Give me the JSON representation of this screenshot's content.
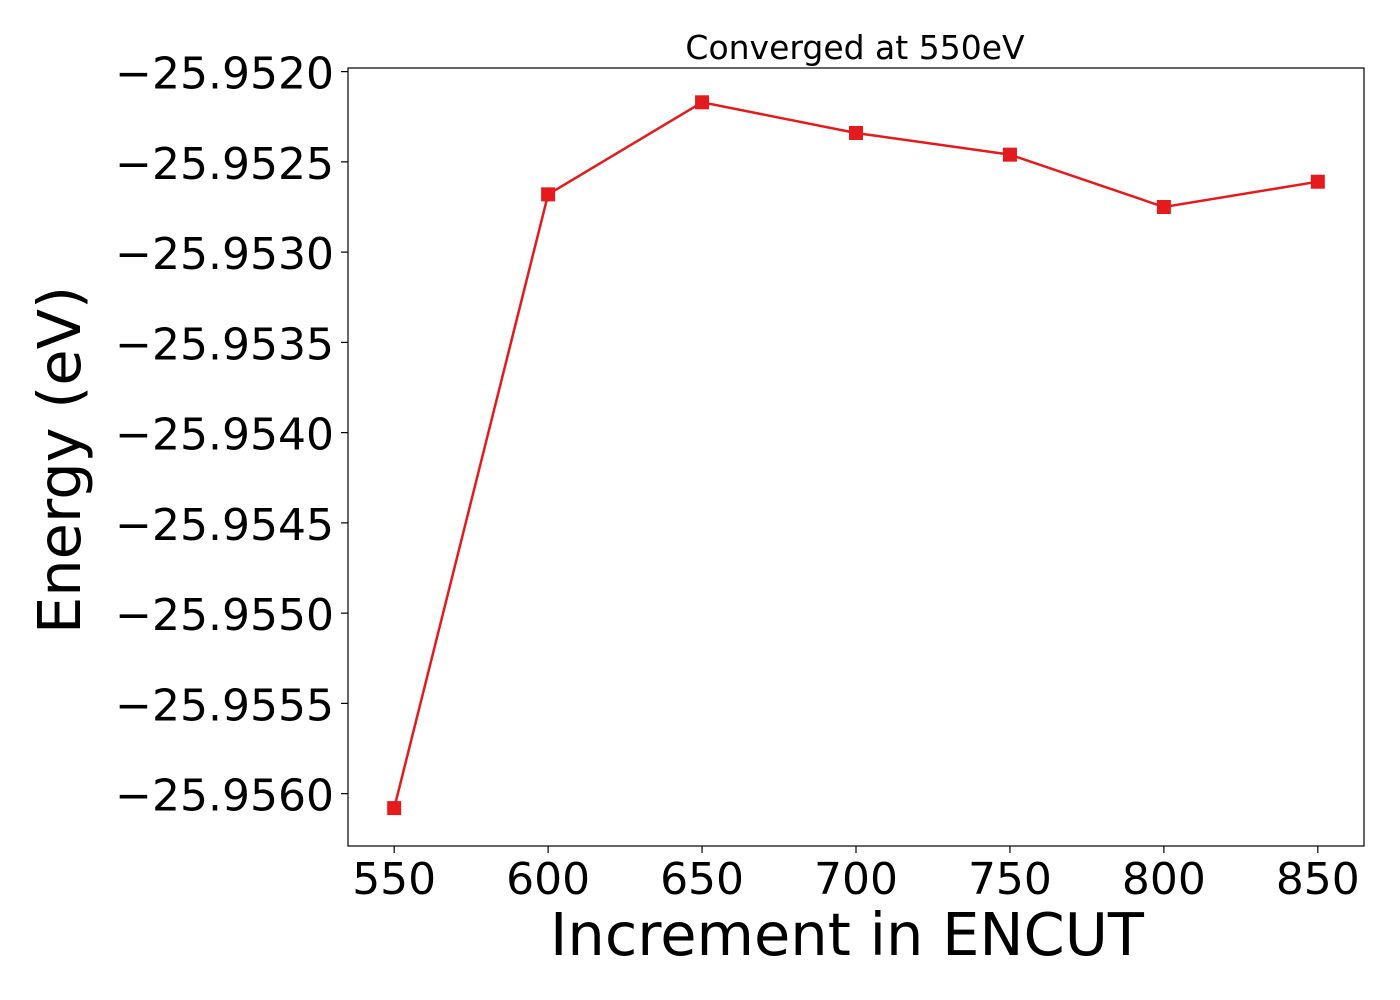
{
  "chart_data": {
    "type": "line",
    "title": "Converged at 550eV",
    "xlabel": "Increment in ENCUT",
    "ylabel": "Energy (eV)",
    "x": [
      550,
      600,
      650,
      700,
      750,
      800,
      850
    ],
    "series": [
      {
        "values": [
          -25.95608,
          -25.95268,
          -25.95217,
          -25.95234,
          -25.95246,
          -25.95275,
          -25.95261
        ],
        "color": "#e41a1c",
        "marker": "square"
      }
    ],
    "xticks": [
      550,
      600,
      650,
      700,
      750,
      800,
      850
    ],
    "xtick_labels": [
      "550",
      "600",
      "650",
      "700",
      "750",
      "800",
      "850"
    ],
    "yticks": [
      -25.952,
      -25.9525,
      -25.953,
      -25.9535,
      -25.954,
      -25.9545,
      -25.955,
      -25.9555,
      -25.956
    ],
    "ytick_labels": [
      "−25.9520",
      "−25.9525",
      "−25.9530",
      "−25.9535",
      "−25.9540",
      "−25.9545",
      "−25.9550",
      "−25.9555",
      "−25.9560"
    ],
    "xlim": [
      535,
      865
    ],
    "ylim": [
      -25.95629,
      -25.95198
    ],
    "grid": false,
    "legend": "none"
  }
}
